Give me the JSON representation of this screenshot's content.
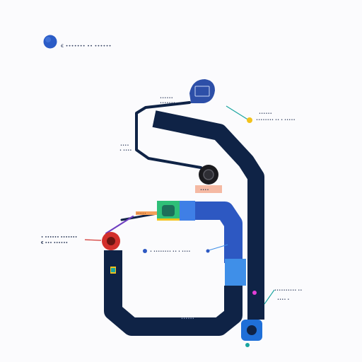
{
  "header": {
    "dot_color": "#2b5cc7",
    "text": "€ ••••••• •• ••••••"
  },
  "colors": {
    "track": "#0f2346",
    "track_blue": "#2d58c2",
    "accent_light": "#3f8fe8",
    "red": "#d2302c",
    "teal": "#1aa5a0",
    "green": "#2fbf78",
    "peach": "#f5b9a3",
    "yellow": "#f2c21b",
    "purple": "#6f3fc2"
  },
  "labels": {
    "top_left": [
      "••••••",
      "•••••••"
    ],
    "mid_left": [
      "••••",
      "• ••••"
    ],
    "top_right": [
      "••••••",
      "•••••••• •• • •••••"
    ],
    "center_chip": "••••",
    "left_block": [
      "• •••••• •••••••",
      "€ ••• ••••••"
    ],
    "center_line": "• •••••••• •• • ••••",
    "bottom_right": [
      "•••••••••• ••",
      "•••• •"
    ],
    "track_label": "••••••",
    "orange_tag": "••••••"
  }
}
